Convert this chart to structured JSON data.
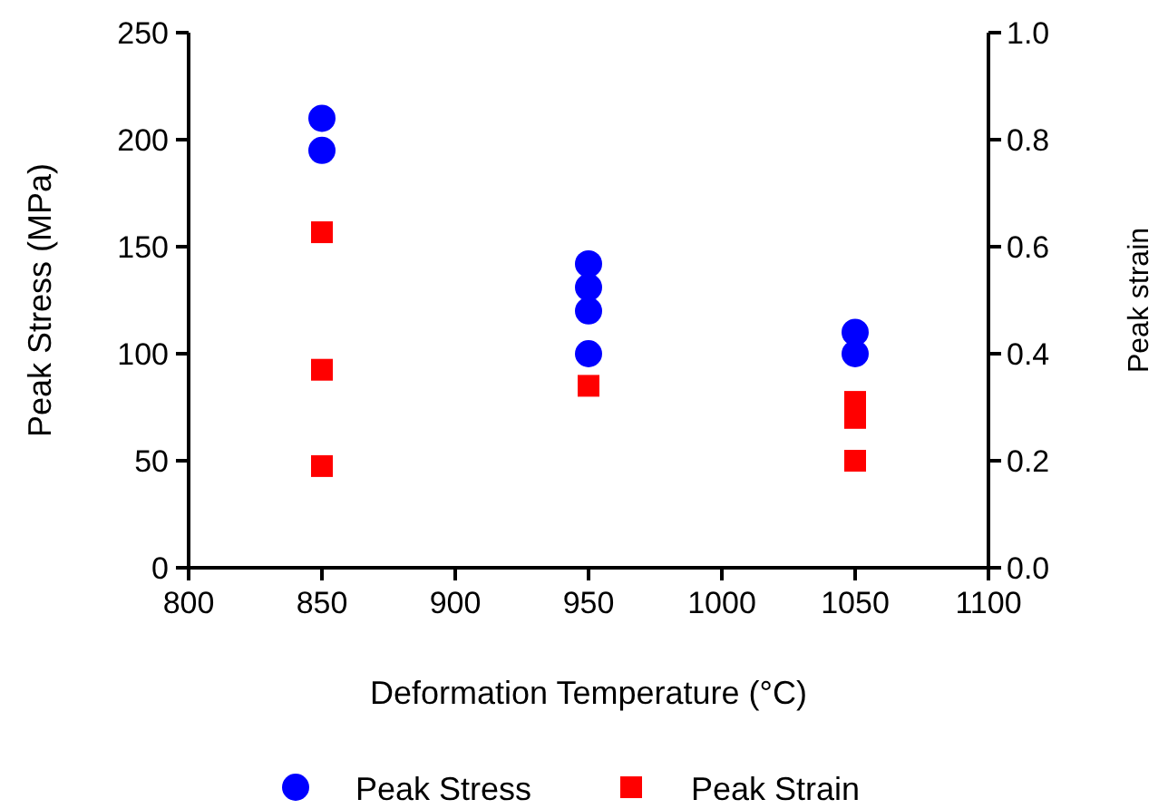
{
  "chart_data": {
    "type": "scatter",
    "xlabel": "Deformation Temperature (°C)",
    "ylabel": "Peak Stress (MPa)",
    "y2label": "Peak strain",
    "xlim": [
      800,
      1100
    ],
    "xticks": [
      800,
      850,
      900,
      950,
      1000,
      1050,
      1100
    ],
    "ylim": [
      0,
      250
    ],
    "yticks": [
      0,
      50,
      100,
      150,
      200,
      250
    ],
    "y2lim": [
      0,
      1
    ],
    "y2ticks": [
      {
        "value": 0,
        "label": "0.0"
      },
      0.2,
      0.4,
      0.6,
      0.8,
      {
        "value": 1,
        "label": "1.0"
      }
    ],
    "grid": false,
    "legend": "bottom",
    "series": [
      {
        "name": "Peak Stress",
        "color": "#0000ff",
        "marker": "circle",
        "x": [
          850,
          850,
          950,
          950,
          950,
          950,
          1050,
          1050
        ],
        "values": [
          210,
          195,
          142,
          131,
          120,
          100,
          110,
          100
        ]
      },
      {
        "name": "Peak Strain",
        "color": "#ff0000",
        "marker": "square",
        "axis": "y2",
        "x": [
          850,
          850,
          850,
          950,
          1050,
          1050,
          1050
        ],
        "values": [
          0.627,
          0.37,
          0.19,
          0.34,
          0.31,
          0.28,
          0.2
        ]
      }
    ]
  }
}
